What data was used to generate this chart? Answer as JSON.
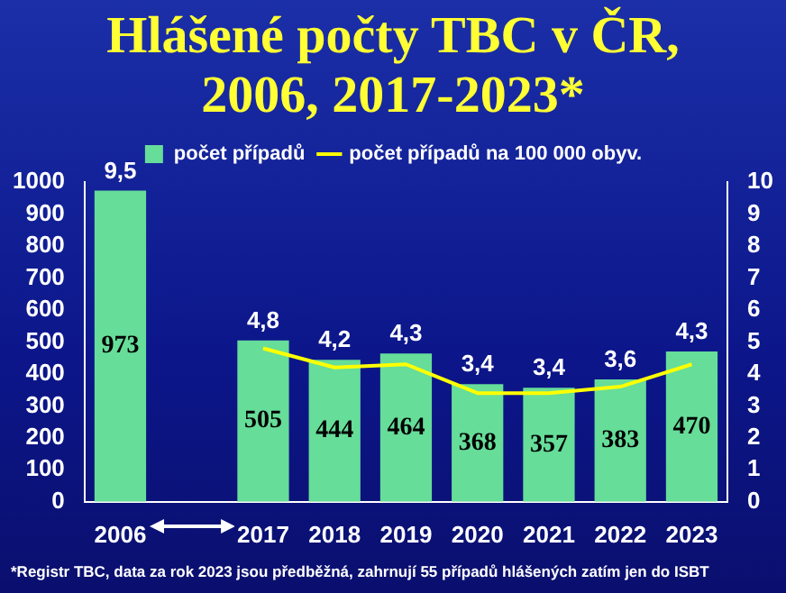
{
  "chart_data": {
    "type": "bar",
    "title": "Hlášené počty TBC v ČR, 2006, 2017-2023*",
    "categories": [
      "2006",
      null,
      "2017",
      "2018",
      "2019",
      "2020",
      "2021",
      "2022",
      "2023"
    ],
    "series": [
      {
        "name": "počet případů",
        "color": "#66dd99",
        "values": [
          973,
          null,
          505,
          444,
          464,
          368,
          357,
          383,
          470
        ],
        "value_labels": [
          "973",
          null,
          "505",
          "444",
          "464",
          "368",
          "357",
          "383",
          "470"
        ]
      },
      {
        "name": "počet případů na 100 000 obyv.",
        "type": "line",
        "axis": "y2",
        "color": "#ffff00",
        "values": [
          null,
          null,
          4.8,
          4.2,
          4.3,
          3.4,
          3.4,
          3.6,
          4.3
        ],
        "value_labels": [
          null,
          null,
          "4,8",
          "4,2",
          "4,3",
          "3,4",
          "3,4",
          "3,6",
          "4,3"
        ]
      }
    ],
    "ylim": [
      0,
      1000
    ],
    "yticks": [
      0,
      100,
      200,
      300,
      400,
      500,
      600,
      700,
      800,
      900,
      1000
    ],
    "y2lim": [
      0,
      10
    ],
    "y2ticks": [
      0,
      1,
      2,
      3,
      4,
      5,
      6,
      7,
      8,
      9,
      10
    ],
    "legend": "top",
    "grid": false,
    "marker": "none",
    "annotations": [
      {
        "text": "9,5",
        "x": "2006",
        "y": 973
      },
      "*Registr TBC, data za rok 2023 jsou předběžná, zahrnují 55 případů hlášených zatím jen do ISBT"
    ]
  }
}
